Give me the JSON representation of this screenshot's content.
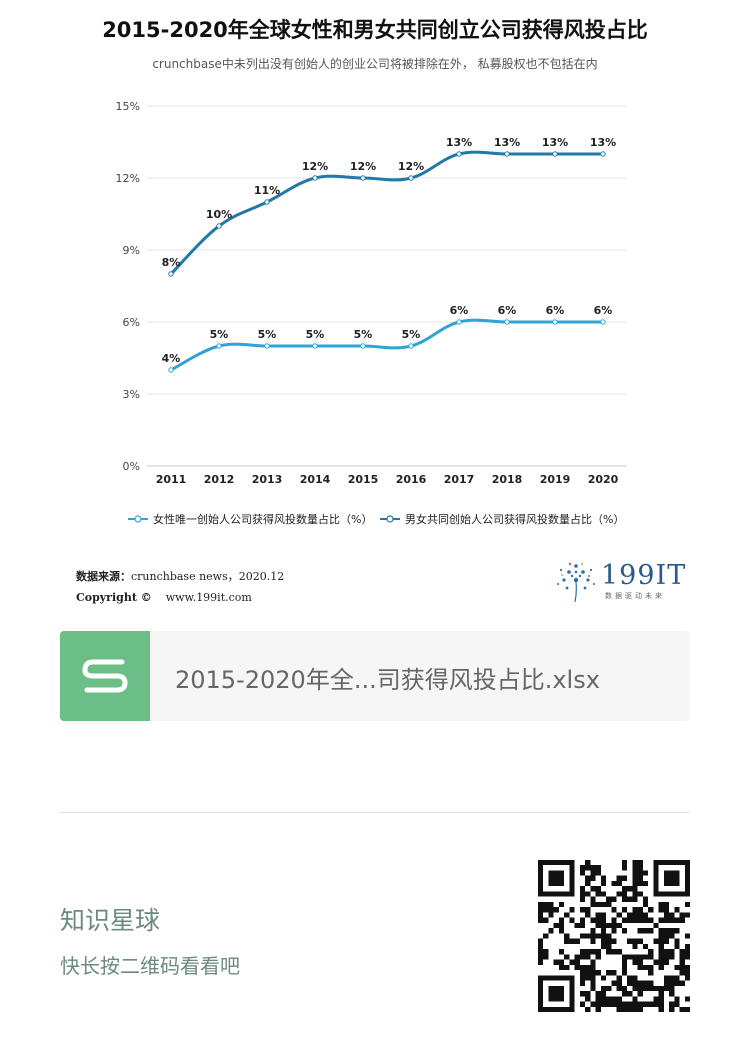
{
  "title": "2015-2020年全球女性和男女共同创立公司获得风投占比",
  "subtitle": "crunchbase中未列出没有创始人的创业公司将被排除在外， 私募股权也不包括在内",
  "chart_data": {
    "type": "line",
    "title": "2015-2020年全球女性和男女共同创立公司获得风投占比",
    "subtitle": "crunchbase中未列出没有创始人的创业公司将被排除在外， 私募股权也不包括在内",
    "categories": [
      "2011",
      "2012",
      "2013",
      "2014",
      "2015",
      "2016",
      "2017",
      "2018",
      "2019",
      "2020"
    ],
    "y_ticks": [
      "0%",
      "3%",
      "6%",
      "9%",
      "12%",
      "15%"
    ],
    "ylim": [
      0,
      15
    ],
    "grid": true,
    "legend_position": "bottom",
    "series": [
      {
        "name": "女性唯一创始人公司获得风投数量占比（%）",
        "values": [
          4,
          5,
          5,
          5,
          5,
          5,
          6,
          6,
          6,
          6
        ],
        "labels": [
          "4%",
          "5%",
          "5%",
          "5%",
          "5%",
          "5%",
          "6%",
          "6%",
          "6%",
          "6%"
        ],
        "color": "#2fa3d6"
      },
      {
        "name": "男女共同创始人公司获得风投数量占比（%）",
        "values": [
          8,
          10,
          11,
          12,
          12,
          12,
          13,
          13,
          13,
          13
        ],
        "labels": [
          "8%",
          "10%",
          "11%",
          "12%",
          "12%",
          "12%",
          "13%",
          "13%",
          "13%",
          "13%"
        ],
        "color": "#2378a8"
      }
    ]
  },
  "source": {
    "label": "数据来源：",
    "text": "crunchbase news，2020.12",
    "copyright_label": "Copyright ©",
    "copyright_url": "www.199it.com"
  },
  "logo": {
    "text": "199IT",
    "tagline": "数据驱动未来"
  },
  "file_card": {
    "icon": "spreadsheet-s-icon",
    "name": "2015-2020年全...司获得风投占比.xlsx"
  },
  "footer": {
    "title": "知识星球",
    "subtitle": "快长按二维码看看吧"
  },
  "colors": {
    "file_icon": "#6bbf86",
    "footer_text": "#6c8a80"
  }
}
